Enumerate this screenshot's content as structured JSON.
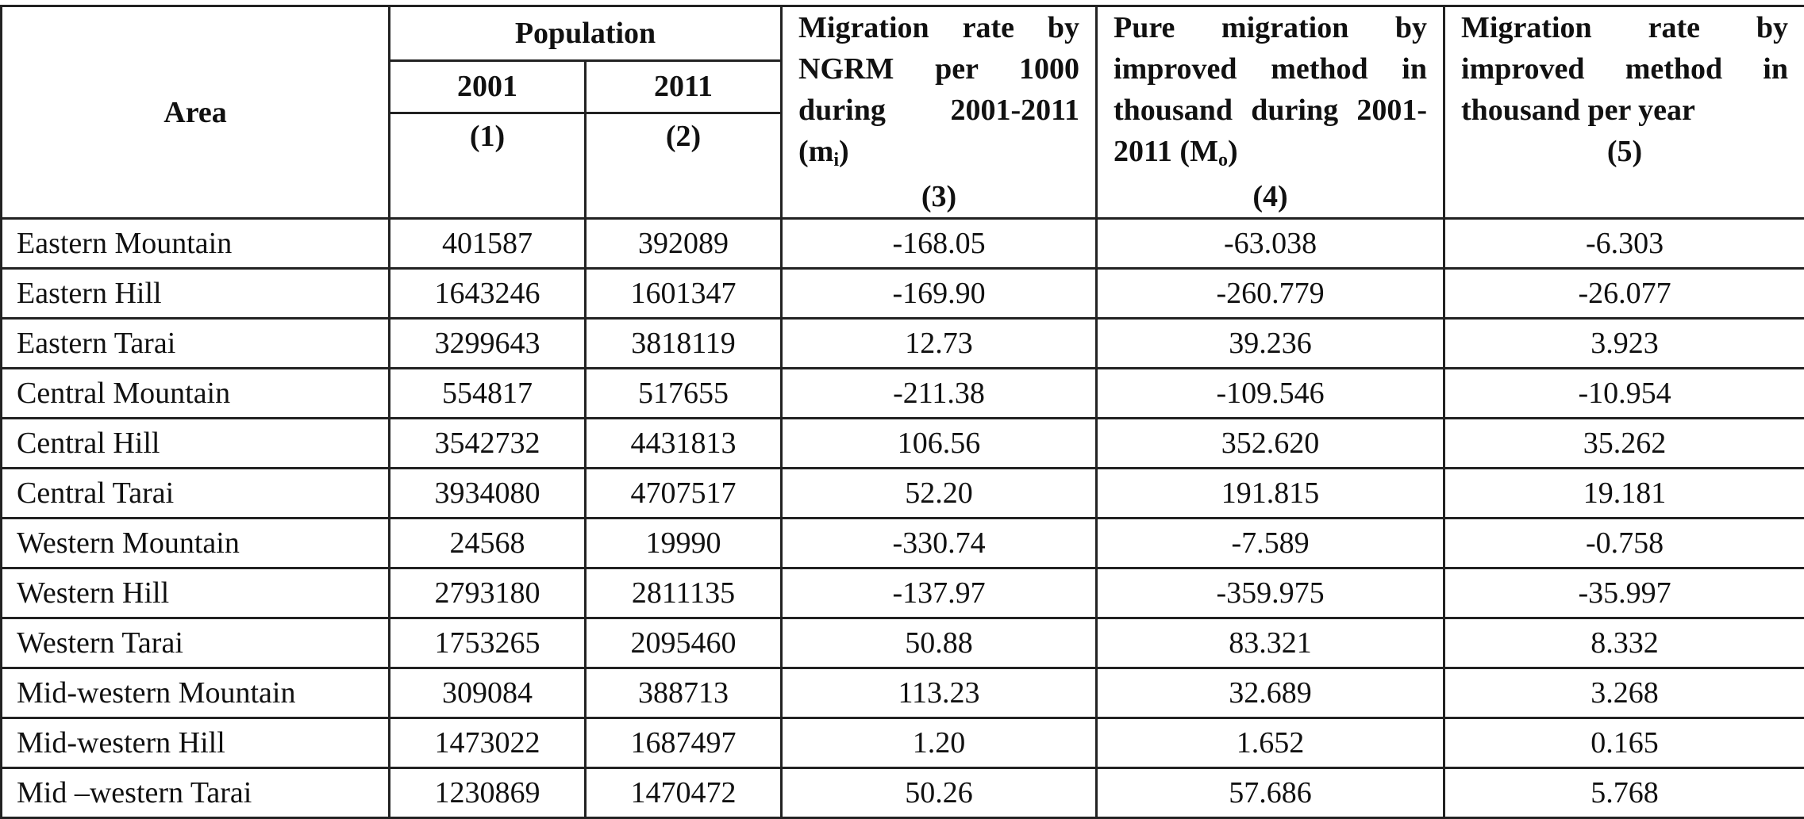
{
  "table": {
    "headers": {
      "area": "Area",
      "population": "Population",
      "year_2001": "2001",
      "year_2011": "2011",
      "col1": "(1)",
      "col2": "(2)",
      "col3_text": "Migration rate by NGRM per 1000 during 2001-2011 (m",
      "col3_sub": "i",
      "col3_close": ")",
      "col3_num": "(3)",
      "col4_text": "Pure migration by improved method in thousand during 2001-2011 (M",
      "col4_sub": "o",
      "col4_close": ")",
      "col4_num": "(4)",
      "col5_text": "Migration rate by improved method in thousand per year",
      "col5_num": "(5)"
    },
    "rows": [
      {
        "area": "Eastern Mountain",
        "p2001": "401587",
        "p2011": "392089",
        "rate": "-168.05",
        "pure": "-63.038",
        "per_year": "-6.303"
      },
      {
        "area": "Eastern Hill",
        "p2001": "1643246",
        "p2011": "1601347",
        "rate": "-169.90",
        "pure": "-260.779",
        "per_year": "-26.077"
      },
      {
        "area": "Eastern Tarai",
        "p2001": "3299643",
        "p2011": "3818119",
        "rate": "12.73",
        "pure": "39.236",
        "per_year": "3.923"
      },
      {
        "area": "Central Mountain",
        "p2001": "554817",
        "p2011": "517655",
        "rate": "-211.38",
        "pure": "-109.546",
        "per_year": "-10.954"
      },
      {
        "area": "Central Hill",
        "p2001": "3542732",
        "p2011": "4431813",
        "rate": "106.56",
        "pure": "352.620",
        "per_year": "35.262"
      },
      {
        "area": "Central Tarai",
        "p2001": "3934080",
        "p2011": "4707517",
        "rate": "52.20",
        "pure": "191.815",
        "per_year": "19.181"
      },
      {
        "area": "Western Mountain",
        "p2001": "24568",
        "p2011": "19990",
        "rate": "-330.74",
        "pure": "-7.589",
        "per_year": "-0.758"
      },
      {
        "area": "Western Hill",
        "p2001": "2793180",
        "p2011": "2811135",
        "rate": "-137.97",
        "pure": "-359.975",
        "per_year": "-35.997"
      },
      {
        "area": "Western Tarai",
        "p2001": "1753265",
        "p2011": "2095460",
        "rate": "50.88",
        "pure": "83.321",
        "per_year": "8.332"
      },
      {
        "area": "Mid-western Mountain",
        "p2001": "309084",
        "p2011": "388713",
        "rate": "113.23",
        "pure": "32.689",
        "per_year": "3.268"
      },
      {
        "area": "Mid-western Hill",
        "p2001": "1473022",
        "p2011": "1687497",
        "rate": "1.20",
        "pure": "1.652",
        "per_year": "0.165"
      },
      {
        "area": "Mid –western Tarai",
        "p2001": "1230869",
        "p2011": "1470472",
        "rate": "50.26",
        "pure": "57.686",
        "per_year": "5.768"
      }
    ]
  }
}
